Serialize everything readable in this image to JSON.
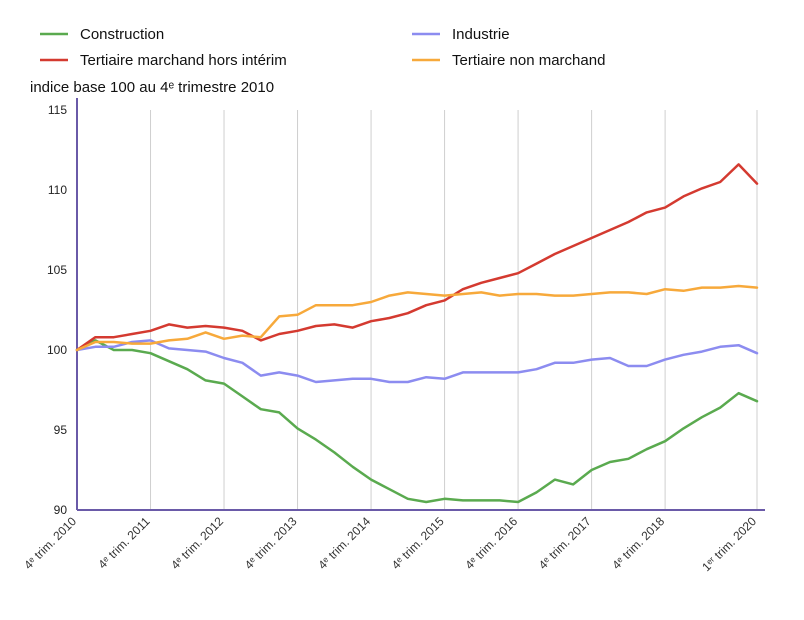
{
  "chart_data": {
    "type": "line",
    "ylabel": "indice base 100 au 4ᵉ trimestre 2010",
    "ylim": [
      90,
      115
    ],
    "y_ticks": [
      90,
      95,
      100,
      105,
      110,
      115
    ],
    "x_tick_labels": [
      "4ᵉ trim. 2010",
      "4ᵉ trim. 2011",
      "4ᵉ trim. 2012",
      "4ᵉ trim. 2013",
      "4ᵉ trim. 2014",
      "4ᵉ trim. 2015",
      "4ᵉ trim. 2016",
      "4ᵉ trim. 2017",
      "4ᵉ trim. 2018",
      "1ᵉʳ trim. 2020"
    ],
    "x_tick_quarter_index": [
      0,
      4,
      8,
      12,
      16,
      20,
      24,
      28,
      32,
      37
    ],
    "grid": "vertical",
    "legend_position": "top",
    "series": [
      {
        "name": "Construction",
        "color": "#5aaa4f",
        "values": [
          100,
          100.6,
          100.0,
          100.0,
          99.8,
          99.3,
          98.8,
          98.1,
          97.9,
          97.1,
          96.3,
          96.1,
          95.1,
          94.4,
          93.6,
          92.7,
          91.9,
          91.3,
          90.7,
          90.5,
          90.7,
          90.6,
          90.6,
          90.6,
          90.5,
          91.1,
          91.9,
          91.6,
          92.5,
          93.0,
          93.2,
          93.8,
          94.3,
          95.1,
          95.8,
          96.4,
          97.3,
          96.8
        ]
      },
      {
        "name": "Industrie",
        "color": "#8c8cf0",
        "values": [
          100,
          100.2,
          100.2,
          100.5,
          100.6,
          100.1,
          100.0,
          99.9,
          99.5,
          99.2,
          98.4,
          98.6,
          98.4,
          98.0,
          98.1,
          98.2,
          98.2,
          98.0,
          98.0,
          98.3,
          98.2,
          98.6,
          98.6,
          98.6,
          98.6,
          98.8,
          99.2,
          99.2,
          99.4,
          99.5,
          99.0,
          99.0,
          99.4,
          99.7,
          99.9,
          100.2,
          100.3,
          99.8
        ]
      },
      {
        "name": "Tertiaire marchand hors intérim",
        "color": "#d43a30",
        "values": [
          100,
          100.8,
          100.8,
          101.0,
          101.2,
          101.6,
          101.4,
          101.5,
          101.4,
          101.2,
          100.6,
          101.0,
          101.2,
          101.5,
          101.6,
          101.4,
          101.8,
          102.0,
          102.3,
          102.8,
          103.1,
          103.8,
          104.2,
          104.5,
          104.8,
          105.4,
          106.0,
          106.5,
          107.0,
          107.5,
          108.0,
          108.6,
          108.9,
          109.6,
          110.1,
          110.5,
          111.6,
          110.4
        ]
      },
      {
        "name": "Tertiaire non marchand",
        "color": "#f7a93b",
        "values": [
          100,
          100.5,
          100.5,
          100.4,
          100.4,
          100.6,
          100.7,
          101.1,
          100.7,
          100.9,
          100.8,
          102.1,
          102.2,
          102.8,
          102.8,
          102.8,
          103.0,
          103.4,
          103.6,
          103.5,
          103.4,
          103.5,
          103.6,
          103.4,
          103.5,
          103.5,
          103.4,
          103.4,
          103.5,
          103.6,
          103.6,
          103.5,
          103.8,
          103.7,
          103.9,
          103.9,
          104.0,
          103.9
        ]
      }
    ]
  }
}
